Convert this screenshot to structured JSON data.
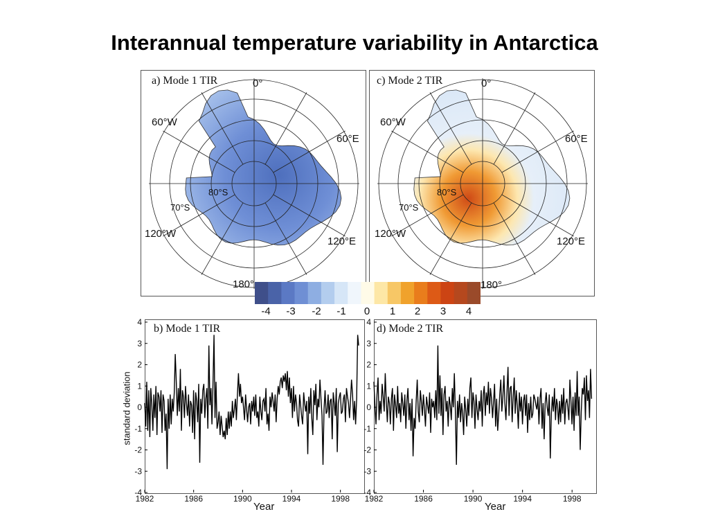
{
  "title": "Interannual temperature variability in Antarctica",
  "maps": [
    {
      "panel_label": "a) Mode 1 TIR",
      "lon_labels": {
        "deg0": "0°",
        "w60": "60°W",
        "e60": "60°E",
        "w120": "120°W",
        "e120": "120°E",
        "deg180": "180°"
      },
      "lat_labels": {
        "s80": "80°S",
        "s70": "70°S"
      }
    },
    {
      "panel_label": "c) Mode 2 TIR",
      "lon_labels": {
        "deg0": "0°",
        "w60": "60°W",
        "e60": "60°E",
        "w120": "120°W",
        "e120": "120°E",
        "deg180": "180°"
      },
      "lat_labels": {
        "s80": "80°S",
        "s70": "70°S"
      }
    }
  ],
  "colorbar": {
    "labels": [
      "-4",
      "-3",
      "-2",
      "-1",
      "0",
      "1",
      "2",
      "3",
      "4"
    ],
    "colors": [
      "#3f4f8a",
      "#4a63a8",
      "#5b79c4",
      "#6f8fd4",
      "#8eaee2",
      "#b3cdee",
      "#d6e6f7",
      "#f0f6fc",
      "#fffbe8",
      "#fde7a6",
      "#f7c766",
      "#f0a22c",
      "#e97d1c",
      "#dd5a16",
      "#cc4414",
      "#b5481e",
      "#9a4a2a"
    ]
  },
  "colors": {
    "mode1_fill": "#7b9bd9",
    "mode2_warm": "#ee9030",
    "mode2_cool": "#dde9f7",
    "line": "#000000"
  },
  "chart_data": [
    {
      "type": "line",
      "title": "b) Mode 1 TIR",
      "xlabel": "Year",
      "ylabel": "standard deviation",
      "xlim": [
        1982,
        2000
      ],
      "ylim": [
        -4,
        4
      ],
      "xticks": [
        "1982",
        "1986",
        "1990",
        "1994",
        "1998"
      ],
      "yticks": [
        "4",
        "3",
        "2",
        "1",
        "0",
        "-1",
        "-2",
        "-3",
        "-4"
      ],
      "x_start": 1982.0,
      "x_step": 0.0833,
      "values": [
        0.2,
        -0.9,
        1.2,
        -1.1,
        0.8,
        -1.4,
        0.9,
        0.1,
        -1.1,
        0.6,
        -0.5,
        1.0,
        -1.3,
        0.7,
        0.5,
        -0.2,
        0.8,
        -1.2,
        0.6,
        0.3,
        -1.1,
        -0.3,
        -2.9,
        0.4,
        -1.0,
        0.6,
        -0.8,
        0.4,
        -0.2,
        0.7,
        2.5,
        1.2,
        -0.4,
        0.9,
        -0.2,
        1.8,
        -1.1,
        0.8,
        0.5,
        -0.5,
        1.0,
        0.2,
        -0.4,
        0.6,
        -0.9,
        0.3,
        0.1,
        -1.2,
        0.8,
        -1.5,
        0.7,
        0.3,
        -0.7,
        1.1,
        -2.6,
        0.4,
        -0.3,
        0.8,
        1.1,
        -0.5,
        0.4,
        0.9,
        -1.0,
        2.9,
        0.1,
        0.9,
        -0.8,
        1.1,
        3.4,
        -0.5,
        1.2,
        -1.0,
        -0.7,
        -0.2,
        -1.3,
        -0.4,
        -0.9,
        -1.4,
        -1.1,
        -1.5,
        -0.5,
        -1.3,
        -0.2,
        -1.0,
        -0.2,
        -0.9,
        0.3,
        -0.5,
        -0.1,
        0.4,
        -0.6,
        0.6,
        1.6,
        0.5,
        1.1,
        0.2,
        0.5,
        0.0,
        -0.6,
        0.6,
        -0.1,
        -0.7,
        0.0,
        0.2,
        -0.8,
        0.3,
        -0.2,
        0.5,
        -0.4,
        0.6,
        -0.5,
        -0.2,
        -0.9,
        0.5,
        -0.2,
        -0.6,
        0.3,
        0.4,
        -0.2,
        0.9,
        -0.8,
        -0.3,
        -1.1,
        0.5,
        0.0,
        0.7,
        0.3,
        -0.2,
        0.6,
        -0.7,
        0.4,
        1.0,
        0.6,
        1.2,
        1.4,
        0.9,
        1.5,
        1.2,
        1.6,
        0.8,
        1.7,
        0.5,
        1.4,
        0.2,
        0.9,
        -0.5,
        1.0,
        -0.2,
        0.6,
        0.2,
        -0.6,
        -0.9,
        0.6,
        0.1,
        -0.4,
        -0.8,
        0.7,
        0.2,
        -0.2,
        0.3,
        -2.2,
        0.5,
        -0.3,
        0.9,
        -0.5,
        -1.3,
        0.8,
        0.1,
        1.1,
        -0.6,
        0.4,
        0.0,
        1.3,
        0.4,
        -0.4,
        -2.7,
        -0.1,
        0.8,
        -0.3,
        -0.2,
        0.6,
        -0.5,
        0.3,
        0.4,
        -1.5,
        0.7,
        0.2,
        -0.4,
        0.9,
        -2.1,
        0.2,
        0.5,
        0.7,
        -0.3,
        -0.2,
        0.4,
        0.6,
        -0.7,
        0.9,
        0.5,
        0.2,
        -0.5,
        0.4,
        1.3,
        0.6,
        -0.6,
        0.3,
        -0.8,
        0.4,
        3.4,
        2.9
      ]
    },
    {
      "type": "line",
      "title": "d) Mode 2 TIR",
      "xlabel": "Year",
      "ylabel": "",
      "xlim": [
        1982,
        2000
      ],
      "ylim": [
        -4,
        4
      ],
      "xticks": [
        "1982",
        "1986",
        "1990",
        "1994",
        "1998"
      ],
      "yticks": [
        "4",
        "3",
        "2",
        "1",
        "0",
        "-1",
        "-2",
        "-3",
        "-4"
      ],
      "x_start": 1982.0,
      "x_step": 0.0833,
      "values": [
        1.2,
        0.1,
        -0.8,
        0.6,
        1.4,
        -0.6,
        0.3,
        -0.3,
        1.1,
        0.5,
        -0.2,
        1.6,
        0.3,
        -0.7,
        0.5,
        0.2,
        -0.8,
        0.4,
        0.9,
        -1.1,
        0.6,
        0.1,
        -0.5,
        1.0,
        -0.3,
        0.2,
        -0.7,
        0.7,
        0.2,
        -0.4,
        0.6,
        -1.0,
        0.3,
        0.9,
        -0.6,
        0.2,
        -1.1,
        0.4,
        -2.3,
        -0.5,
        -1.0,
        0.3,
        1.3,
        -0.2,
        -0.7,
        0.8,
        0.3,
        -0.4,
        0.6,
        -0.1,
        -0.9,
        0.5,
        0.1,
        -0.3,
        0.7,
        -1.2,
        0.4,
        0.0,
        0.3,
        -0.5,
        0.8,
        -0.6,
        2.9,
        -0.3,
        1.5,
        -0.4,
        0.9,
        -1.3,
        0.6,
        1.0,
        -0.2,
        0.3,
        -0.9,
        0.5,
        0.1,
        -0.6,
        0.9,
        0.0,
        1.6,
        -0.2,
        -2.7,
        0.3,
        -0.5,
        0.6,
        -0.7,
        0.2,
        -0.3,
        -1.3,
        0.5,
        -0.1,
        -0.9,
        0.4,
        -0.4,
        0.9,
        1.4,
        -0.5,
        0.7,
        0.3,
        -1.0,
        0.6,
        -0.1,
        -0.6,
        0.3,
        -0.2,
        0.8,
        -0.9,
        0.6,
        1.0,
        -0.4,
        0.7,
        0.1,
        1.2,
        -0.3,
        0.9,
        0.4,
        -0.5,
        0.3,
        1.1,
        -0.9,
        0.4,
        -1.1,
        -0.3,
        0.6,
        1.3,
        -0.2,
        0.5,
        1.5,
        0.2,
        -0.6,
        0.7,
        1.9,
        -0.4,
        0.9,
        1.0,
        -0.7,
        0.5,
        1.4,
        -0.3,
        0.8,
        0.1,
        -1.0,
        0.7,
        -0.2,
        0.5,
        -0.8,
        0.3,
        0.6,
        -0.4,
        0.6,
        -1.2,
        0.2,
        -0.6,
        0.5,
        -0.5,
        -0.3,
        0.6,
        0.4,
        0.1,
        -0.1,
        0.5,
        -0.8,
        0.4,
        0.9,
        -1.0,
        0.2,
        -1.5,
        0.2,
        0.7,
        0.0,
        -0.4,
        0.6,
        -2.4,
        -0.3,
        0.5,
        -0.2,
        0.9,
        -0.6,
        0.4,
        0.1,
        -0.8,
        0.3,
        -0.7,
        0.6,
        -0.3,
        0.9,
        -0.8,
        0.2,
        0.4,
        0.0,
        -0.6,
        1.3,
        0.3,
        -0.8,
        0.5,
        -1.1,
        0.7,
        -0.4,
        1.7,
        -0.4,
        0.5,
        -2.0,
        -0.2,
        0.9,
        0.6,
        1.4,
        -0.6,
        1.5,
        0.3,
        0.8,
        -0.5,
        1.8,
        0.4
      ]
    }
  ]
}
